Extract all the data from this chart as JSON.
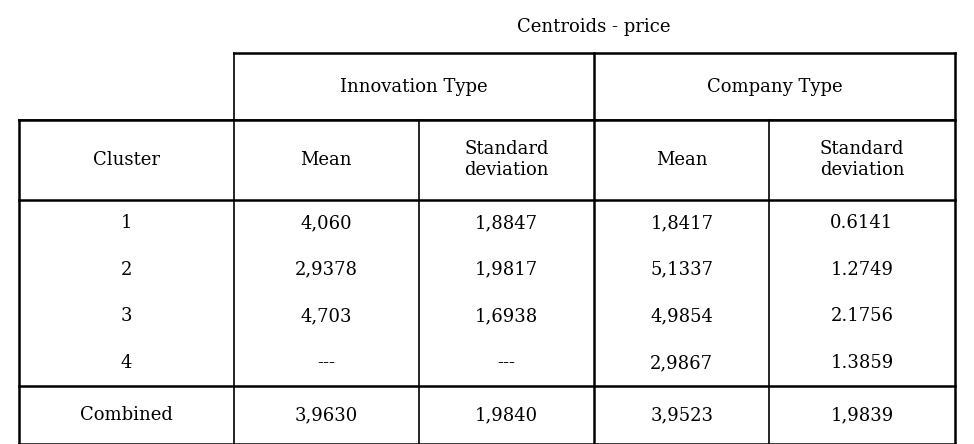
{
  "title": "Centroids - price",
  "col_groups": [
    "Innovation Type",
    "Company Type"
  ],
  "header_row": [
    "Cluster",
    "Mean",
    "Standard\ndeviation",
    "Mean",
    "Standard\ndeviation"
  ],
  "data_rows": [
    [
      "1",
      "4,060",
      "1,8847",
      "1,8417",
      "0.6141"
    ],
    [
      "2",
      "2,9378",
      "1,9817",
      "5,1337",
      "1.2749"
    ],
    [
      "3",
      "4,703",
      "1,6938",
      "4,9854",
      "2.1756"
    ],
    [
      "4",
      "---",
      "---",
      "2,9867",
      "1.3859"
    ]
  ],
  "combined_row": [
    "Combined",
    "3,9630",
    "1,9840",
    "3,9523",
    "1,9839"
  ],
  "background_color": "#ffffff",
  "font_size": 13,
  "title_font_size": 13
}
